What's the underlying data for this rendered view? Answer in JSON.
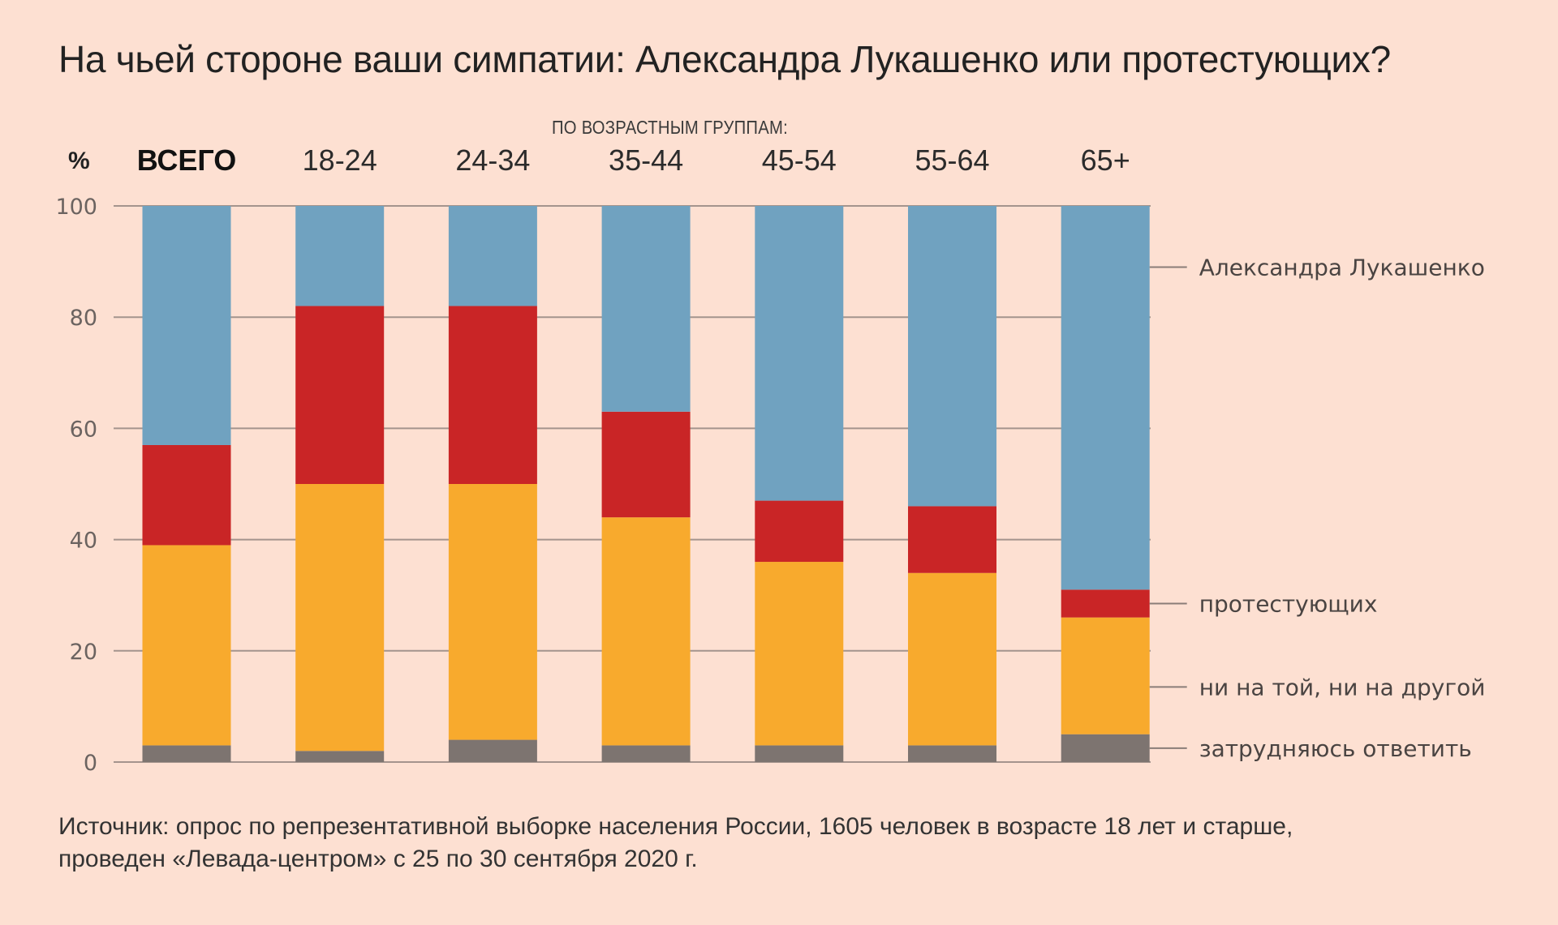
{
  "title": "На чьей стороне ваши симпатии: Александра Лукашенко или протестующих?",
  "group_caption": "ПО ВОЗРАСТНЫМ ГРУППАМ:",
  "unit_label": "%",
  "source": {
    "line1": "Источник: опрос по репрезентативной выборке населения России, 1605 человек в возрасте 18 лет и старше,",
    "line2": "проведен «Левада-центром» с 25 по 30 сентября 2020 г."
  },
  "chart_data": {
    "type": "bar",
    "stacked": true,
    "title": "На чьей стороне ваши симпатии: Александра Лукашенко или протестующих?",
    "subtitle": "ПО ВОЗРАСТНЫМ ГРУППАМ:",
    "xlabel": "",
    "ylabel": "%",
    "ylim": [
      0,
      100
    ],
    "yticks": [
      0,
      20,
      40,
      60,
      80,
      100
    ],
    "grid": true,
    "legend_position": "right",
    "categories": [
      "ВСЕГО",
      "18-24",
      "24-34",
      "35-44",
      "45-54",
      "55-64",
      "65+"
    ],
    "series": [
      {
        "name": "затрудняюсь ответить",
        "color": "#7d7470",
        "values": [
          3,
          2,
          4,
          3,
          3,
          3,
          5
        ]
      },
      {
        "name": "ни на той, ни на другой",
        "color": "#f8aa2d",
        "values": [
          36,
          48,
          46,
          41,
          33,
          31,
          21
        ]
      },
      {
        "name": "протестующих",
        "color": "#c92526",
        "values": [
          18,
          32,
          32,
          19,
          11,
          12,
          5
        ]
      },
      {
        "name": "Александра Лукашенко",
        "color": "#70a2c0",
        "values": [
          43,
          18,
          18,
          37,
          53,
          54,
          69
        ]
      }
    ]
  }
}
